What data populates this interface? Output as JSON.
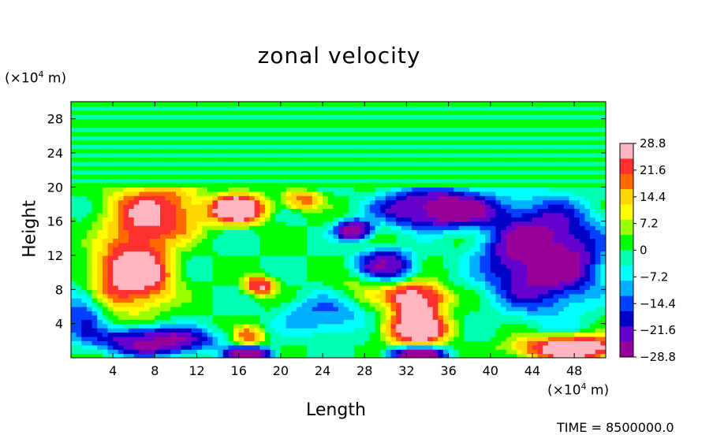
{
  "chart_data": {
    "type": "heatmap",
    "title": "zonal velocity",
    "xlabel": "Length",
    "ylabel": "Height",
    "x_unit_prefix": "(×10",
    "x_unit_exp": "4",
    "x_unit_suffix": " m)",
    "y_unit_prefix": "(×10",
    "y_unit_exp": "4",
    "y_unit_suffix": " m)",
    "xlim": [
      0,
      51
    ],
    "ylim": [
      0,
      30
    ],
    "x_ticks": [
      4,
      8,
      12,
      16,
      20,
      24,
      28,
      32,
      36,
      40,
      44,
      48
    ],
    "y_ticks": [
      4,
      8,
      12,
      16,
      20,
      24,
      28
    ],
    "colorbar": {
      "range": [
        -28.8,
        28.8
      ],
      "tick_labels": [
        "28.8",
        "21.6",
        "14.4",
        "7.2",
        "0",
        "−7.2",
        "−14.4",
        "−21.6",
        "−28.8"
      ],
      "tick_values": [
        28.8,
        21.6,
        14.4,
        7.2,
        0,
        -7.2,
        -14.4,
        -21.6,
        -28.8
      ],
      "colors": [
        "#ffb6c1",
        "#ff3030",
        "#ff6a00",
        "#ffd700",
        "#ffff00",
        "#9aff00",
        "#00ff00",
        "#00ffb0",
        "#00ffff",
        "#00b0ff",
        "#0040ff",
        "#0000c8",
        "#6600cc",
        "#990099"
      ]
    },
    "background_value": 0,
    "upper_layer_top": 30,
    "features": [
      {
        "x": 6,
        "y": 10,
        "rx": 4,
        "ry": 4.5,
        "v": 28.8
      },
      {
        "x": 8,
        "y": 17,
        "rx": 5,
        "ry": 3.5,
        "v": 24
      },
      {
        "x": 16,
        "y": 17.5,
        "rx": 3,
        "ry": 2,
        "v": 28.8
      },
      {
        "x": 22,
        "y": 18.5,
        "rx": 2,
        "ry": 1.2,
        "v": 18
      },
      {
        "x": 33,
        "y": 7,
        "rx": 3,
        "ry": 2,
        "v": 28.8
      },
      {
        "x": 33,
        "y": 3.5,
        "rx": 3.5,
        "ry": 2.2,
        "v": 28.8
      },
      {
        "x": 48,
        "y": 1.2,
        "rx": 6,
        "ry": 1.6,
        "v": 28.8
      },
      {
        "x": 18,
        "y": 8.5,
        "rx": 1.6,
        "ry": 1.2,
        "v": 25
      },
      {
        "x": 17,
        "y": 2.5,
        "rx": 1.5,
        "ry": 1.2,
        "v": 18
      },
      {
        "x": 45,
        "y": 12,
        "rx": 6,
        "ry": 6.5,
        "v": -28.8
      },
      {
        "x": 35,
        "y": 17.5,
        "rx": 6,
        "ry": 2.5,
        "v": -28.8
      },
      {
        "x": 30,
        "y": 11,
        "rx": 3,
        "ry": 2,
        "v": -22
      },
      {
        "x": 27,
        "y": 15,
        "rx": 2,
        "ry": 1.3,
        "v": -26
      },
      {
        "x": 8,
        "y": 2,
        "rx": 6,
        "ry": 1.8,
        "v": -26
      },
      {
        "x": 17,
        "y": 0.5,
        "rx": 2.5,
        "ry": 1,
        "v": -28.8
      },
      {
        "x": 33,
        "y": 0.5,
        "rx": 3,
        "ry": 1,
        "v": -28.8
      },
      {
        "x": 24,
        "y": 5,
        "rx": 4,
        "ry": 2.5,
        "v": -12
      },
      {
        "x": 1,
        "y": 5,
        "rx": 2,
        "ry": 3,
        "v": -15
      },
      {
        "x": 28,
        "y": 8,
        "rx": 3,
        "ry": 2,
        "v": 6
      }
    ]
  },
  "footer": {
    "time_label": "TIME = 8500000.0"
  }
}
